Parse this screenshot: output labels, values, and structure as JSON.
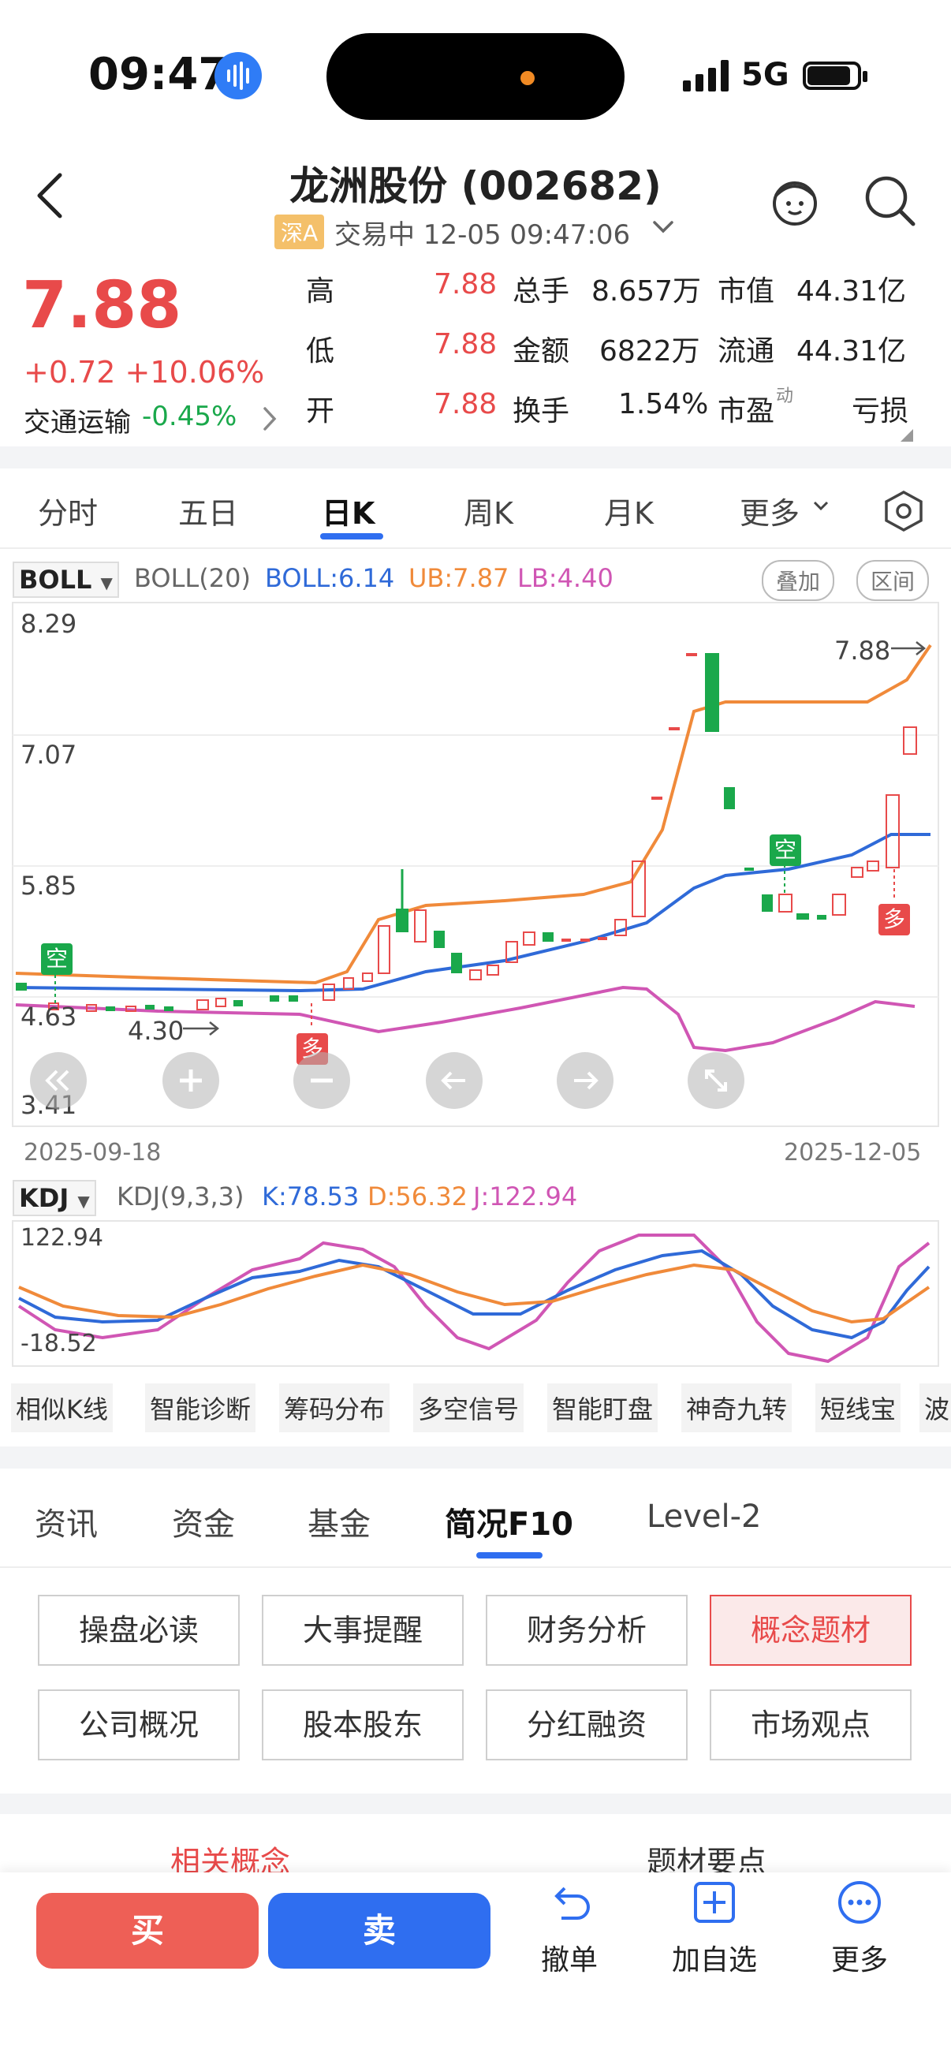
{
  "status": {
    "time": "09:47",
    "network": "5G"
  },
  "header": {
    "title": "龙洲股份 (002682)",
    "market_badge": "深A",
    "trade_status": "交易中 12-05 09:47:06"
  },
  "quote": {
    "price": "7.88",
    "change": "+0.72 +10.06%",
    "sector_name": "交通运输",
    "sector_change": "-0.45%",
    "rows": [
      {
        "l1": "高",
        "v1": "7.88",
        "l2": "总手",
        "v2": "8.657万",
        "l3": "市值",
        "v3": "44.31亿"
      },
      {
        "l1": "低",
        "v1": "7.88",
        "l2": "金额",
        "v2": "6822万",
        "l3": "流通",
        "v3": "44.31亿"
      },
      {
        "l1": "开",
        "v1": "7.88",
        "l2": "换手",
        "v2": "1.54%",
        "l3": "市盈",
        "l3sup": "动",
        "v3": "亏损"
      }
    ]
  },
  "chart_tabs": [
    "分时",
    "五日",
    "日K",
    "周K",
    "月K",
    "更多"
  ],
  "boll": {
    "name": "BOLL",
    "params": "BOLL(20)",
    "mid": "BOLL:6.14",
    "ub": "UB:7.87",
    "lb": "LB:4.40",
    "btn_overlay": "叠加",
    "btn_range": "区间"
  },
  "kline": {
    "y_labels": [
      "8.29",
      "7.07",
      "5.85",
      "4.63",
      "3.41"
    ],
    "last_label": "7.88",
    "low_label": "4.30",
    "date_start": "2025-09-18",
    "date_end": "2025-12-05",
    "signal_empty": "空",
    "signal_more": "多"
  },
  "kdj": {
    "name": "KDJ",
    "params": "KDJ(9,3,3)",
    "k": "K:78.53",
    "d": "D:56.32",
    "j": "J:122.94",
    "y_max": "122.94",
    "y_min": "-18.52"
  },
  "tools": [
    "相似K线",
    "智能诊断",
    "筹码分布",
    "多空信号",
    "智能盯盘",
    "神奇九转",
    "短线宝",
    "波"
  ],
  "info_tabs": [
    "资讯",
    "资金",
    "基金",
    "简况F10",
    "Level-2"
  ],
  "concept_buttons": [
    "操盘必读",
    "大事提醒",
    "财务分析",
    "概念题材",
    "公司概况",
    "股本股东",
    "分红融资",
    "市场观点"
  ],
  "bottom_peek": {
    "left": "相关概念",
    "right": "题材要点"
  },
  "bottom_bar": {
    "buy": "买",
    "sell": "卖",
    "cancel": "撤单",
    "add_watch": "加自选",
    "more": "更多"
  },
  "colors": {
    "up": "#e84a4a",
    "down": "#1aa84b",
    "boll_mid": "#2f6ad8",
    "boll_ub": "#f08a3a",
    "boll_lb": "#d056b4",
    "accent": "#2f6ef0"
  }
}
